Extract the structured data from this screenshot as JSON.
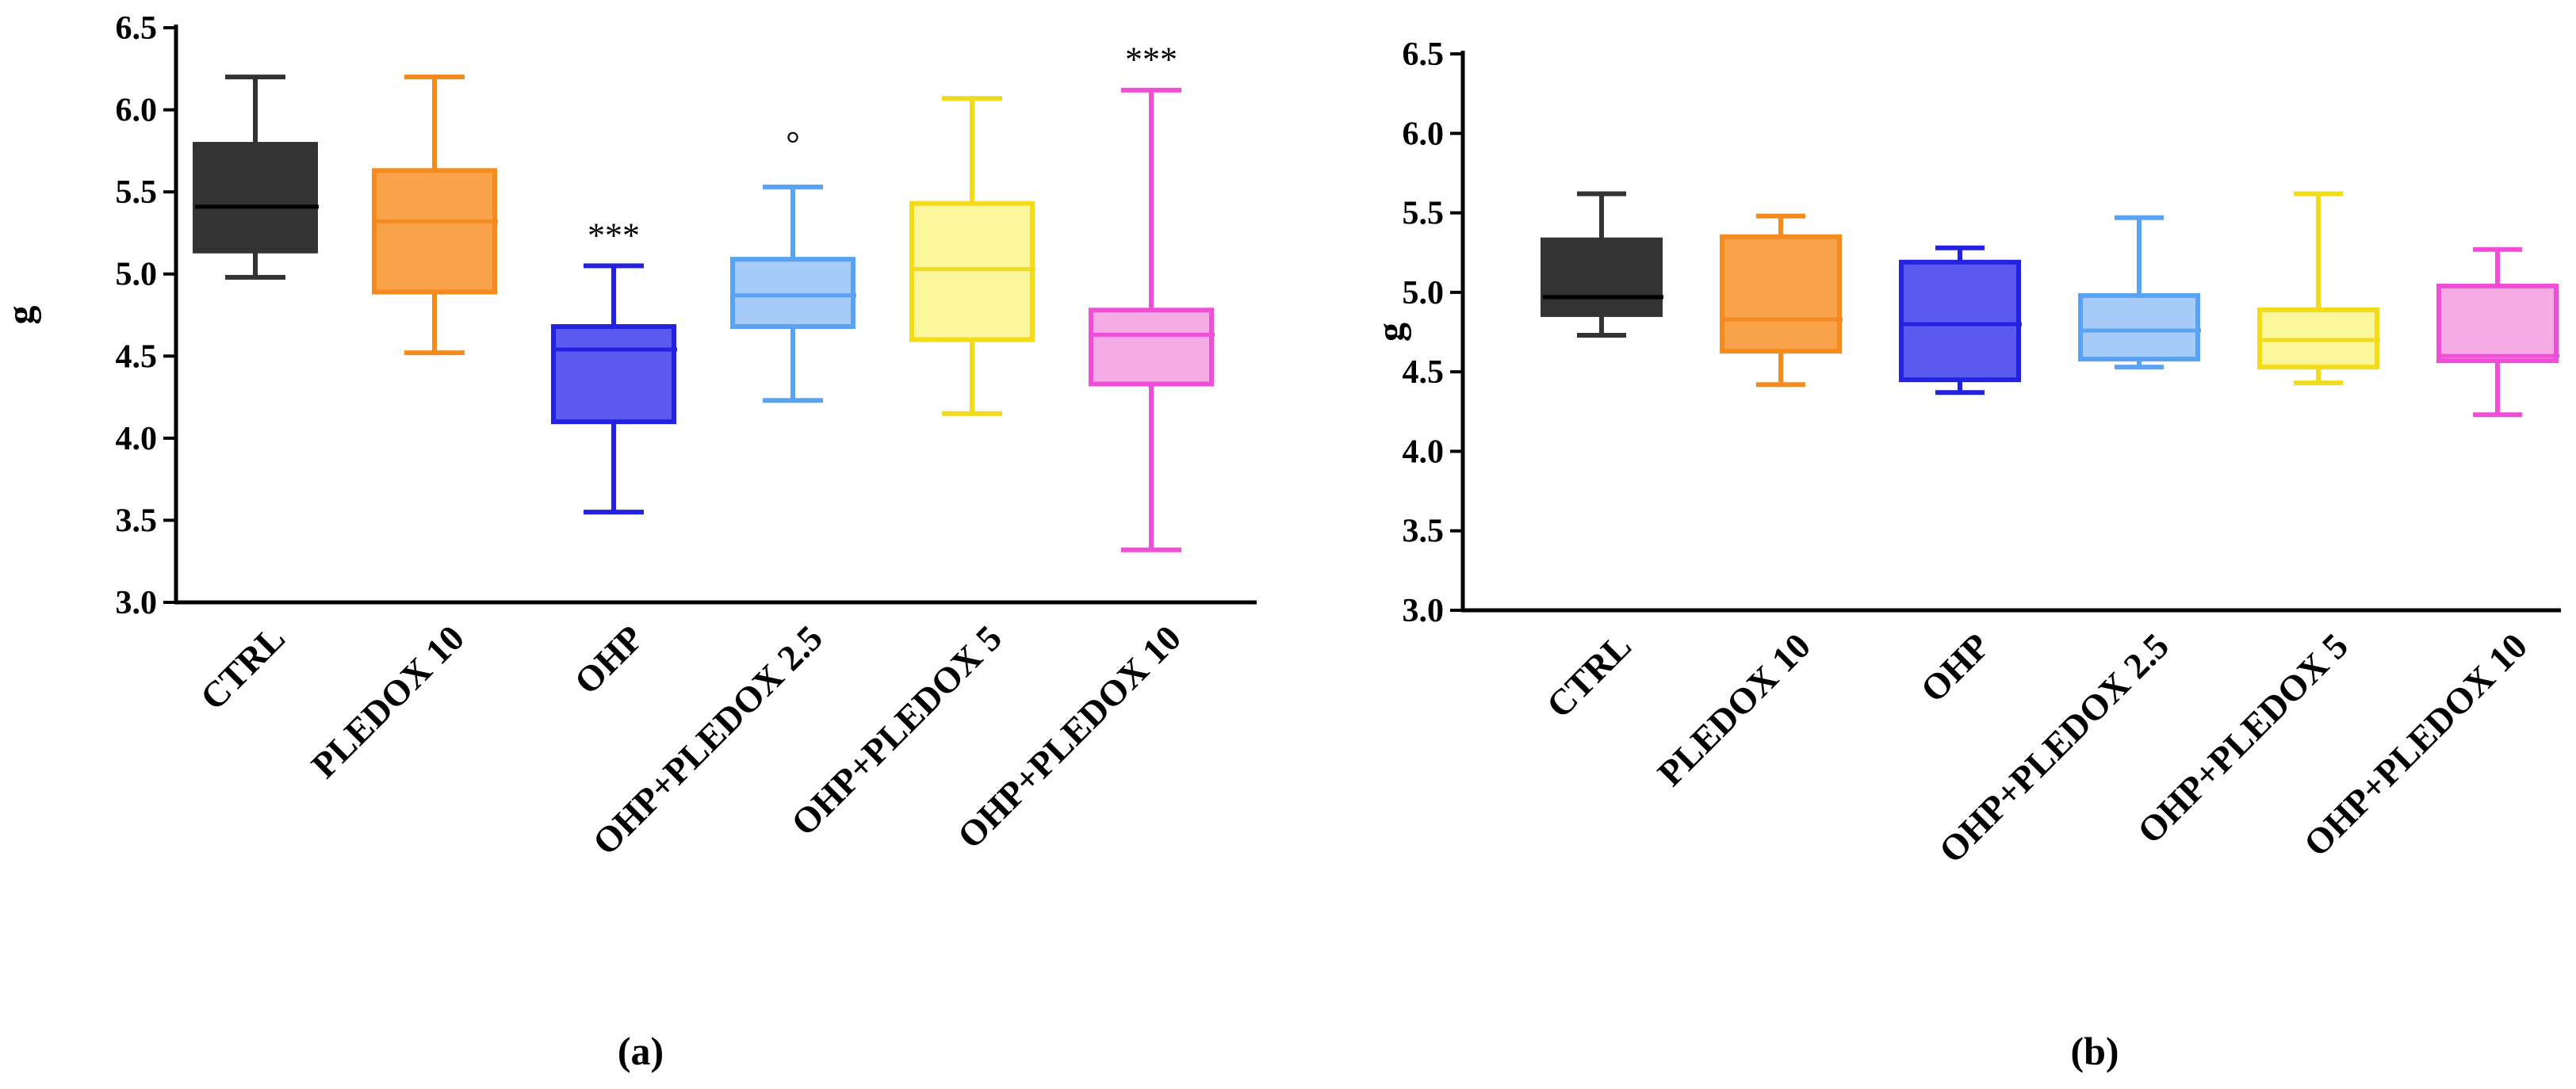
{
  "chart_data": [
    {
      "type": "boxplot",
      "panel_label": "(a)",
      "ylabel": "g",
      "ylim": [
        3.0,
        6.5
      ],
      "yticks": [
        "3.0",
        "3.5",
        "4.0",
        "4.5",
        "5.0",
        "5.5",
        "6.0",
        "6.5"
      ],
      "categories": [
        "CTRL",
        "PLEDOX 10",
        "OHP",
        "OHP+PLEDOX 2.5",
        "OHP+PLEDOX 5",
        "OHP+PLEDOX 10"
      ],
      "boxes": [
        {
          "name": "CTRL",
          "min": 4.98,
          "q1": 5.14,
          "median": 5.41,
          "q3": 5.79,
          "max": 6.2,
          "color": "#333333",
          "fill": "#333333",
          "annotation": ""
        },
        {
          "name": "PLEDOX 10",
          "min": 4.52,
          "q1": 4.89,
          "median": 5.32,
          "q3": 5.63,
          "max": 6.2,
          "color": "#F58A1F",
          "fill": "#F9A24A",
          "annotation": ""
        },
        {
          "name": "OHP",
          "min": 3.55,
          "q1": 4.1,
          "median": 4.54,
          "q3": 4.68,
          "max": 5.05,
          "color": "#2222E0",
          "fill": "#5A5AEE",
          "annotation": "***"
        },
        {
          "name": "OHP+PLEDOX 2.5",
          "min": 4.23,
          "q1": 4.68,
          "median": 4.87,
          "q3": 5.09,
          "max": 5.53,
          "color": "#5AA2F2",
          "fill": "#A6CBF8",
          "annotation": "°"
        },
        {
          "name": "OHP+PLEDOX 5",
          "min": 4.15,
          "q1": 4.6,
          "median": 5.03,
          "q3": 5.43,
          "max": 6.07,
          "color": "#F2DC1A",
          "fill": "#FCF69A",
          "annotation": ""
        },
        {
          "name": "OHP+PLEDOX 10",
          "min": 3.32,
          "q1": 4.33,
          "median": 4.63,
          "q3": 4.78,
          "max": 6.12,
          "color": "#EE4FD6",
          "fill": "#F4ABE6",
          "annotation": "***"
        }
      ]
    },
    {
      "type": "boxplot",
      "panel_label": "(b)",
      "ylabel": "g",
      "ylim": [
        3.0,
        6.5
      ],
      "yticks": [
        "3.0",
        "3.5",
        "4.0",
        "4.5",
        "5.0",
        "5.5",
        "6.0",
        "6.5"
      ],
      "categories": [
        "CTRL",
        "PLEDOX 10",
        "OHP",
        "OHP+PLEDOX 2.5",
        "OHP+PLEDOX 5",
        "OHP+PLEDOX 10"
      ],
      "boxes": [
        {
          "name": "CTRL",
          "min": 4.73,
          "q1": 4.86,
          "median": 4.97,
          "q3": 5.33,
          "max": 5.62,
          "color": "#333333",
          "fill": "#333333",
          "annotation": ""
        },
        {
          "name": "PLEDOX 10",
          "min": 4.42,
          "q1": 4.63,
          "median": 4.83,
          "q3": 5.35,
          "max": 5.48,
          "color": "#F58A1F",
          "fill": "#F9A24A",
          "annotation": ""
        },
        {
          "name": "OHP",
          "min": 4.37,
          "q1": 4.45,
          "median": 4.8,
          "q3": 5.19,
          "max": 5.28,
          "color": "#2222E0",
          "fill": "#5A5AEE",
          "annotation": ""
        },
        {
          "name": "OHP+PLEDOX 2.5",
          "min": 4.53,
          "q1": 4.58,
          "median": 4.76,
          "q3": 4.98,
          "max": 5.47,
          "color": "#5AA2F2",
          "fill": "#A6CBF8",
          "annotation": ""
        },
        {
          "name": "OHP+PLEDOX 5",
          "min": 4.43,
          "q1": 4.53,
          "median": 4.7,
          "q3": 4.89,
          "max": 5.62,
          "color": "#F2DC1A",
          "fill": "#FCF69A",
          "annotation": ""
        },
        {
          "name": "OHP+PLEDOX 10",
          "min": 4.23,
          "q1": 4.57,
          "median": 4.6,
          "q3": 5.04,
          "max": 5.27,
          "color": "#EE4FD6",
          "fill": "#F4ABE6",
          "annotation": ""
        }
      ]
    }
  ]
}
